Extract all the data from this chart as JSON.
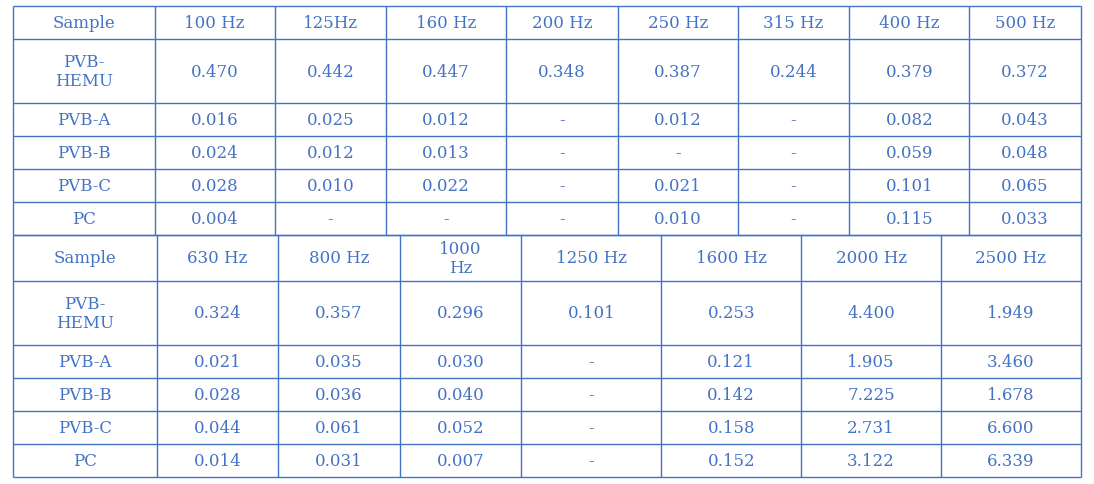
{
  "top_headers": [
    "Sample",
    "100 Hz",
    "125Hz",
    "160 Hz",
    "200 Hz",
    "250 Hz",
    "315 Hz",
    "400 Hz",
    "500 Hz"
  ],
  "bottom_headers": [
    "Sample",
    "630 Hz",
    "800 Hz",
    "1000\nHz",
    "1250 Hz",
    "1600 Hz",
    "2000 Hz",
    "2500 Hz"
  ],
  "top_rows": [
    [
      "PVB-\nHEMU",
      "0.470",
      "0.442",
      "0.447",
      "0.348",
      "0.387",
      "0.244",
      "0.379",
      "0.372"
    ],
    [
      "PVB-A",
      "0.016",
      "0.025",
      "0.012",
      "-",
      "0.012",
      "-",
      "0.082",
      "0.043"
    ],
    [
      "PVB-B",
      "0.024",
      "0.012",
      "0.013",
      "-",
      "-",
      "-",
      "0.059",
      "0.048"
    ],
    [
      "PVB-C",
      "0.028",
      "0.010",
      "0.022",
      "-",
      "0.021",
      "-",
      "0.101",
      "0.065"
    ],
    [
      "PC",
      "0.004",
      "-",
      "-",
      "-",
      "0.010",
      "-",
      "0.115",
      "0.033"
    ]
  ],
  "bottom_rows": [
    [
      "PVB-\nHEMU",
      "0.324",
      "0.357",
      "0.296",
      "0.101",
      "0.253",
      "4.400",
      "1.949"
    ],
    [
      "PVB-A",
      "0.021",
      "0.035",
      "0.030",
      "-",
      "0.121",
      "1.905",
      "3.460"
    ],
    [
      "PVB-B",
      "0.028",
      "0.036",
      "0.040",
      "-",
      "0.142",
      "7.225",
      "1.678"
    ],
    [
      "PVB-C",
      "0.044",
      "0.061",
      "0.052",
      "-",
      "0.158",
      "2.731",
      "6.600"
    ],
    [
      "PC",
      "0.014",
      "0.031",
      "0.007",
      "-",
      "0.152",
      "3.122",
      "6.339"
    ]
  ],
  "text_color": "#4472C4",
  "line_color": "#4472C4",
  "bg_color": "#FFFFFF",
  "font_size": 12,
  "header_font_size": 12,
  "top_col_ratios": [
    1.18,
    1.0,
    0.93,
    1.0,
    0.93,
    1.0,
    0.93,
    1.0,
    0.93
  ],
  "bot_col_ratios": [
    1.18,
    1.0,
    1.0,
    1.0,
    1.15,
    1.15,
    1.15,
    1.15
  ],
  "top_row_height_ratios": [
    0.75,
    1.45,
    0.75,
    0.75,
    0.75,
    0.75
  ],
  "bot_row_height_ratios": [
    1.05,
    1.45,
    0.75,
    0.75,
    0.75,
    0.75
  ]
}
